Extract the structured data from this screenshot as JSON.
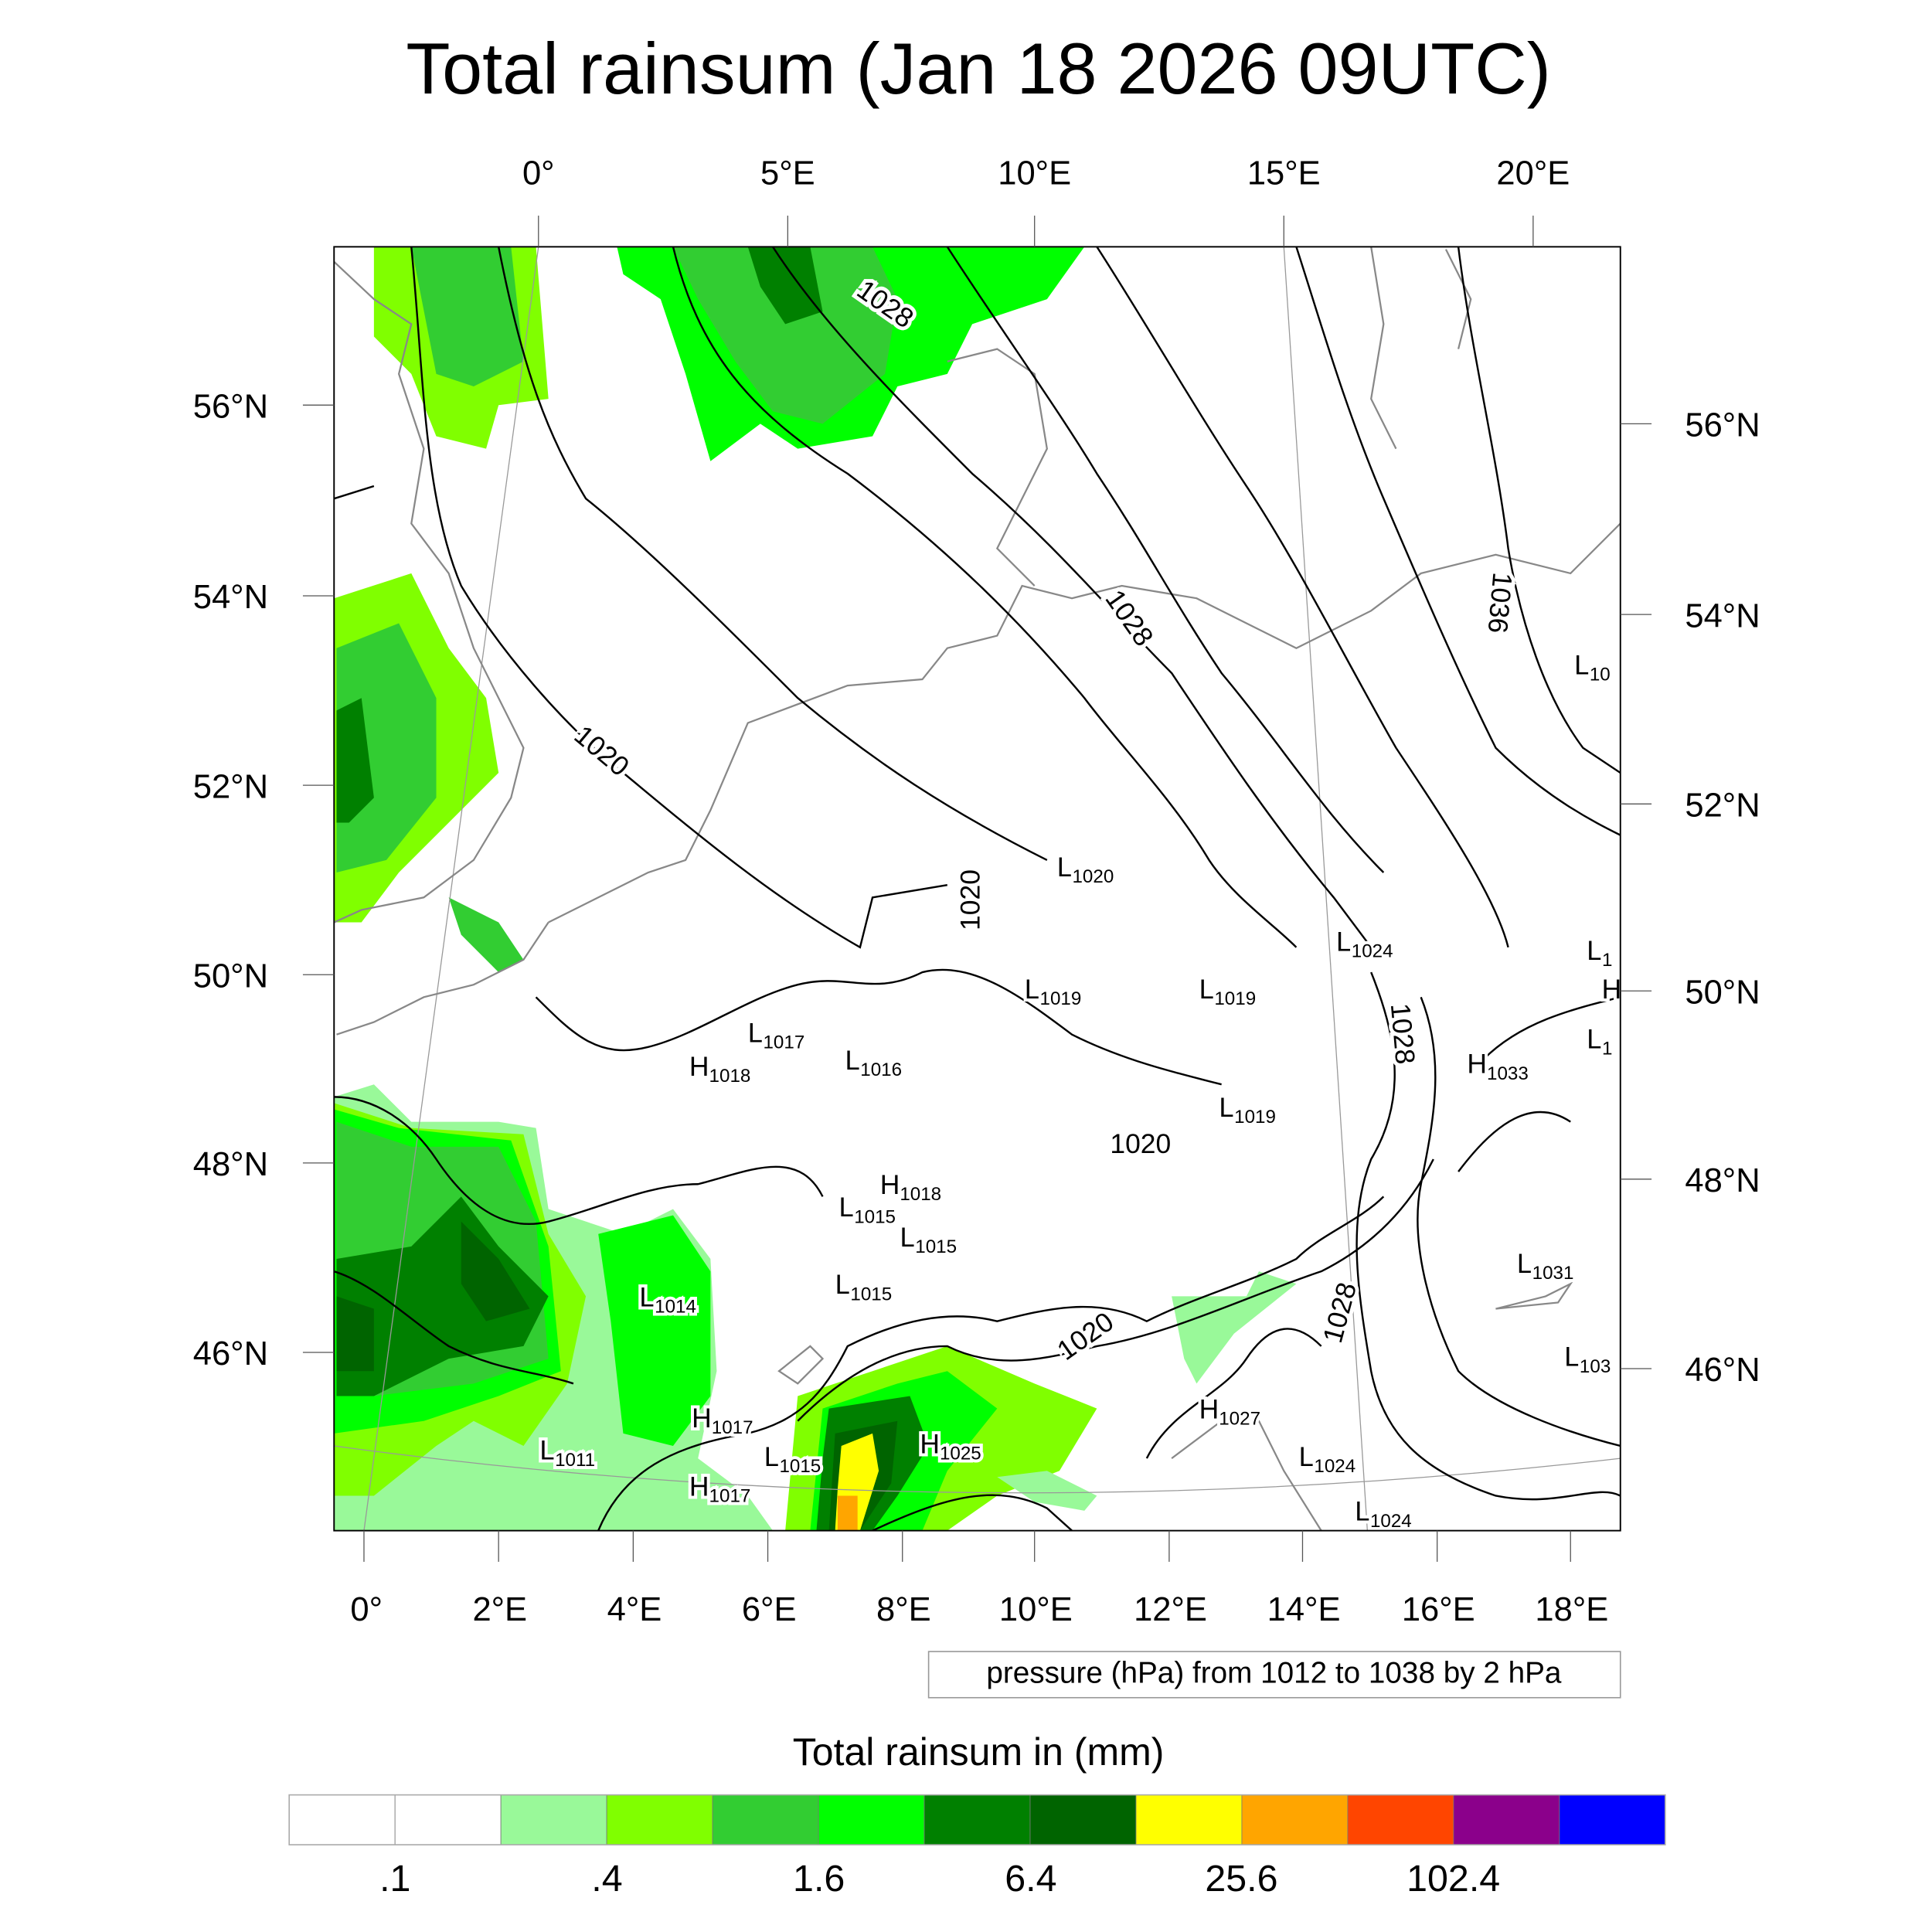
{
  "title": "Total rainsum (Jan 18 2026 09UTC)",
  "map": {
    "top_lon_labels": [
      "0°",
      "5°E",
      "10°E",
      "15°E",
      "20°E"
    ],
    "bottom_lon_labels": [
      "0°",
      "2°E",
      "4°E",
      "6°E",
      "8°E",
      "10°E",
      "12°E",
      "14°E",
      "16°E",
      "18°E"
    ],
    "left_lat_labels": [
      "56°N",
      "54°N",
      "52°N",
      "50°N",
      "48°N",
      "46°N"
    ],
    "right_lat_labels": [
      "56°N",
      "54°N",
      "52°N",
      "50°N",
      "48°N",
      "46°N"
    ],
    "contour_labels": [
      "1028",
      "1028",
      "1020",
      "1020",
      "1028",
      "1020",
      "1020",
      "1028",
      "1036"
    ],
    "pressure_centers": [
      {
        "type": "L",
        "value": "1020"
      },
      {
        "type": "L",
        "value": "1024"
      },
      {
        "type": "L",
        "value": "1019"
      },
      {
        "type": "L",
        "value": "1019"
      },
      {
        "type": "L",
        "value": "1017"
      },
      {
        "type": "L",
        "value": "1016"
      },
      {
        "type": "H",
        "value": "1018"
      },
      {
        "type": "H",
        "value": "1033"
      },
      {
        "type": "L",
        "value": "1019"
      },
      {
        "type": "H",
        "value": "1018"
      },
      {
        "type": "L",
        "value": "1015"
      },
      {
        "type": "L",
        "value": "1015"
      },
      {
        "type": "L",
        "value": "1015"
      },
      {
        "type": "L",
        "value": "1014"
      },
      {
        "type": "H",
        "value": "1017"
      },
      {
        "type": "L",
        "value": "1011"
      },
      {
        "type": "L",
        "value": "1015"
      },
      {
        "type": "H",
        "value": "1017"
      },
      {
        "type": "H",
        "value": "1025"
      },
      {
        "type": "H",
        "value": "1027"
      },
      {
        "type": "L",
        "value": "1024"
      },
      {
        "type": "L",
        "value": "1024"
      },
      {
        "type": "L",
        "value": "1031"
      },
      {
        "type": "L",
        "value": "103"
      },
      {
        "type": "L",
        "value": "10"
      },
      {
        "type": "L",
        "value": "1"
      },
      {
        "type": "H",
        "value": ""
      },
      {
        "type": "L",
        "value": "1"
      }
    ],
    "contour_info": "pressure (hPa) from 1012 to 1038 by 2 hPa"
  },
  "colorbar": {
    "title": "Total rainsum in (mm)",
    "colors": [
      "#ffffff",
      "#ffffff",
      "#99f999",
      "#80ff00",
      "#32cd32",
      "#00ff00",
      "#008000",
      "#006400",
      "#ffff00",
      "#ffa500",
      "#ff4500",
      "#8b008b",
      "#0000ff"
    ],
    "labels": [
      ".1",
      ".4",
      "1.6",
      "6.4",
      "25.6",
      "102.4"
    ]
  }
}
